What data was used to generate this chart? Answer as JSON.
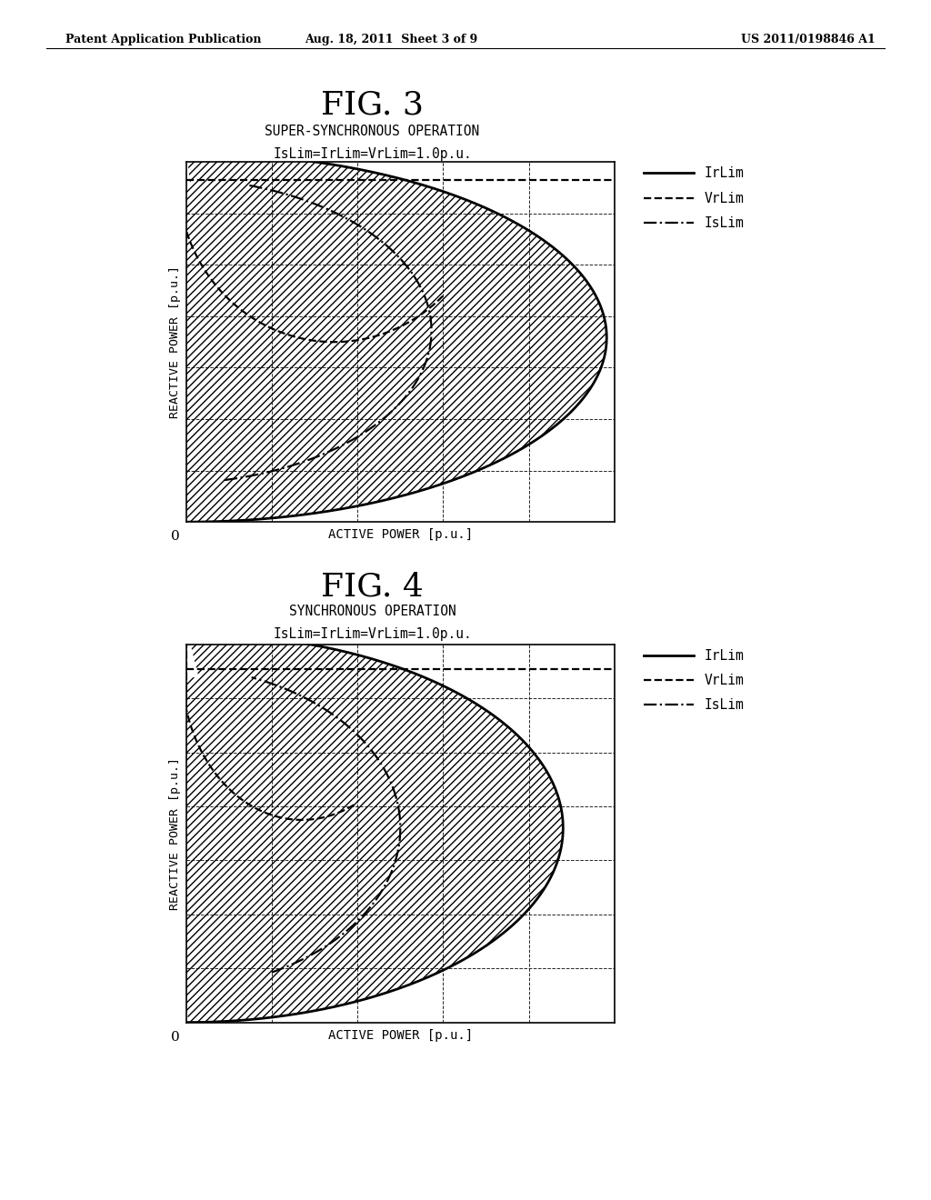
{
  "fig3_title": "FIG. 3",
  "fig3_subtitle1": "SUPER-SYNCHRONOUS OPERATION",
  "fig3_subtitle2": "IsLim=IrLim=VrLim=1.0p.u.",
  "fig4_title": "FIG. 4",
  "fig4_subtitle1": "SYNCHRONOUS OPERATION",
  "fig4_subtitle2": "IsLim=IrLim=VrLim=1.0p.u.",
  "xlabel": "ACTIVE POWER [p.u.]",
  "ylabel": "REACTIVE POWER [p.u.]",
  "legend_IrLim": "IrLim",
  "legend_VrLim": "VrLim",
  "legend_IsLim": "IsLim",
  "header_left": "Patent Application Publication",
  "header_center": "Aug. 18, 2011  Sheet 3 of 9",
  "header_right": "US 2011/0198846 A1",
  "bg_color": "#ffffff"
}
